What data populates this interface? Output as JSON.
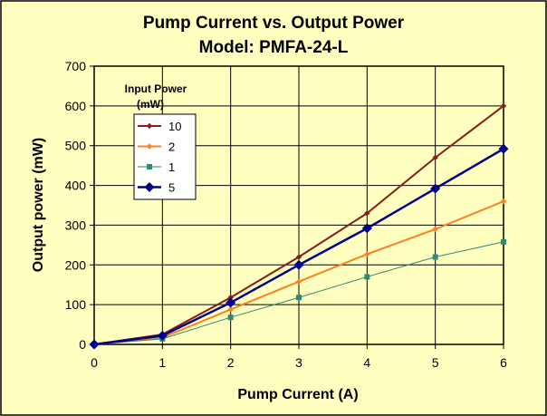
{
  "colors": {
    "background": "#ffffc0",
    "plot_area": "#ffffc0",
    "grid": "#000000",
    "frame": "#000000"
  },
  "chart_data": {
    "type": "line",
    "title": "Pump Current vs. Output Power",
    "subtitle": "Model: PMFA-24-L",
    "xlabel": "Pump Current (A)",
    "ylabel": "Output power (mW)",
    "xlim": [
      0,
      6
    ],
    "ylim": [
      0,
      700
    ],
    "x_ticks": [
      0,
      1,
      2,
      3,
      4,
      5,
      6
    ],
    "y_ticks": [
      0,
      100,
      200,
      300,
      400,
      500,
      600,
      700
    ],
    "grid": true,
    "legend": {
      "title_line1": "Input Power",
      "title_line2": "(mW)",
      "placement": "top-left"
    },
    "x": [
      0,
      1,
      2,
      3,
      4,
      5,
      6
    ],
    "series": [
      {
        "name": "10",
        "color": "#8b1a1a",
        "marker": "diamond-small",
        "values": [
          0,
          25,
          118,
          220,
          330,
          470,
          600
        ]
      },
      {
        "name": "2",
        "color": "#ff7f1e",
        "marker": "diamond-small",
        "values": [
          0,
          17,
          88,
          158,
          227,
          290,
          360
        ]
      },
      {
        "name": "1",
        "color": "#2e8b72",
        "marker": "square",
        "values": [
          0,
          14,
          68,
          118,
          170,
          220,
          258
        ]
      },
      {
        "name": "5",
        "color": "#00008b",
        "marker": "diamond-large",
        "values": [
          0,
          22,
          105,
          200,
          292,
          392,
          492
        ]
      }
    ]
  }
}
